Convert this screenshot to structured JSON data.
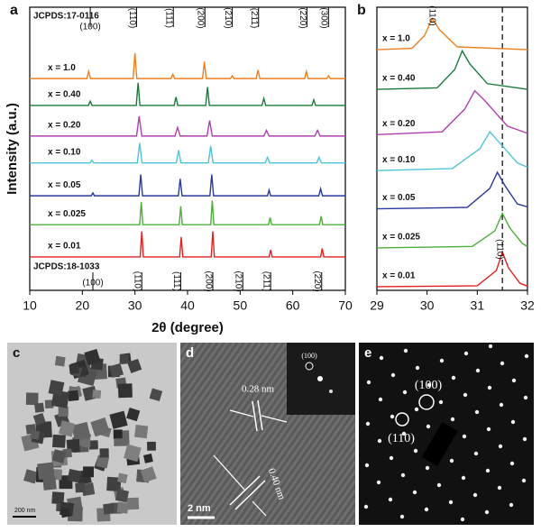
{
  "chart_data": [
    {
      "type": "line",
      "panel": "a",
      "xlabel": "2θ (degree)",
      "ylabel": "Intensity (a.u.)",
      "xlim": [
        10,
        70
      ],
      "xticks": [
        10,
        20,
        30,
        40,
        50,
        60,
        70
      ],
      "ylim": [
        0,
        100
      ],
      "references": [
        {
          "name": "JCPDS:17-0116",
          "positions": [
            21.5,
            30.3,
            37.3,
            43.3,
            48.5,
            53.5,
            62.7,
            66.8
          ],
          "labels": [
            "(100)",
            "(110)",
            "(111)",
            "(200)",
            "(210)",
            "(211)",
            "(220)",
            "(300)"
          ]
        },
        {
          "name": "JCPDS:18-1033",
          "positions": [
            22.0,
            31.3,
            38.7,
            44.8,
            50.5,
            55.8,
            65.5
          ],
          "labels": [
            "(100)",
            "(110)",
            "(111)",
            "(200)",
            "(210)",
            "(211)",
            "(220)"
          ]
        }
      ],
      "series": [
        {
          "name": "x = 1.0",
          "color": "#f07f1e",
          "x": [
            10,
            20.85,
            21.2,
            21.55,
            29.65,
            30.0,
            30.35,
            36.85,
            37.2,
            37.55,
            42.85,
            43.2,
            43.55,
            48.15,
            48.5,
            48.85,
            53.05,
            53.4,
            53.75,
            62.25,
            62.6,
            62.95,
            66.45,
            66.8,
            67.15,
            70
          ],
          "values": [
            74.8,
            74.8,
            77.3,
            74.8,
            74.8,
            83.8,
            74.8,
            74.8,
            76.3,
            74.8,
            74.8,
            80.8,
            74.8,
            74.8,
            75.8,
            74.8,
            74.8,
            77.8,
            74.8,
            74.8,
            77.3,
            74.8,
            74.8,
            75.8,
            74.8,
            74.8
          ]
        },
        {
          "name": "x = 0.40",
          "color": "#1a7a3a",
          "x": [
            10,
            21.15,
            21.5,
            21.85,
            30.25,
            30.6,
            30.95,
            37.45,
            37.8,
            38.15,
            43.45,
            43.8,
            44.15,
            54.15,
            54.5,
            54.85,
            63.65,
            64.0,
            64.35,
            70
          ],
          "values": [
            65.3,
            65.3,
            66.8,
            65.3,
            65.3,
            73.3,
            65.3,
            65.3,
            68.3,
            65.3,
            65.3,
            71.8,
            65.3,
            65.3,
            67.8,
            65.3,
            65.3,
            67.3,
            65.3,
            65.3
          ]
        },
        {
          "name": "x = 0.20",
          "color": "#b040b0",
          "x": [
            10,
            30.3,
            30.8,
            31.3,
            37.6,
            38.1,
            38.6,
            43.7,
            44.2,
            44.7,
            54.5,
            55.0,
            55.5,
            64.2,
            64.7,
            65.2,
            70
          ],
          "values": [
            54.5,
            54.5,
            61.5,
            54.5,
            54.5,
            57.5,
            54.5,
            54.5,
            60,
            54.5,
            54.5,
            56.5,
            54.5,
            54.5,
            56.5,
            54.5,
            54.5
          ]
        },
        {
          "name": "x = 0.10",
          "color": "#4fc3d8",
          "x": [
            10,
            21.45,
            21.8,
            22.15,
            30.45,
            30.9,
            31.35,
            37.85,
            38.3,
            38.75,
            43.95,
            44.4,
            44.85,
            54.75,
            55.2,
            55.65,
            64.55,
            65.0,
            65.45,
            70
          ],
          "values": [
            45,
            45,
            46,
            45,
            45,
            52,
            45,
            45,
            49.5,
            45,
            45,
            51,
            45,
            45,
            47,
            45,
            45,
            47,
            45,
            45
          ]
        },
        {
          "name": "x = 0.05",
          "color": "#2a3a9a",
          "x": [
            10,
            21.7,
            22.0,
            22.3,
            30.75,
            31.1,
            31.45,
            38.25,
            38.6,
            38.95,
            44.25,
            44.6,
            44.95,
            55.2,
            55.5,
            55.8,
            64.95,
            65.3,
            65.65,
            70
          ],
          "values": [
            33.4,
            33.4,
            34.4,
            33.4,
            33.4,
            40.9,
            33.4,
            33.4,
            39.4,
            33.4,
            33.4,
            40.9,
            33.4,
            33.4,
            35.4,
            33.4,
            33.4,
            35.9,
            33.4,
            33.4
          ]
        },
        {
          "name": "x = 0.025",
          "color": "#4caf3a",
          "x": [
            10,
            30.9,
            31.2,
            31.5,
            38.4,
            38.7,
            39.0,
            44.4,
            44.7,
            45.0,
            55.4,
            55.7,
            56.0,
            65.1,
            65.4,
            65.7,
            70
          ],
          "values": [
            23.2,
            23.2,
            31.2,
            23.2,
            23.2,
            29.7,
            23.2,
            23.2,
            31.7,
            23.2,
            23.2,
            25.7,
            23.2,
            23.2,
            26.2,
            23.2,
            23.2
          ]
        },
        {
          "name": "x = 0.01",
          "color": "#e02020",
          "x": [
            10,
            31.0,
            31.3,
            31.6,
            38.5,
            38.8,
            39.1,
            44.5,
            44.8,
            45.1,
            55.5,
            55.8,
            56.1,
            65.3,
            65.6,
            65.9,
            70
          ],
          "values": [
            11.8,
            11.8,
            20.8,
            11.8,
            11.8,
            18.8,
            11.8,
            11.8,
            20.8,
            11.8,
            11.8,
            14.3,
            11.8,
            11.8,
            14.8,
            11.8,
            11.8
          ]
        }
      ]
    },
    {
      "type": "line",
      "panel": "b",
      "xlim": [
        29,
        32
      ],
      "xticks": [
        29,
        30,
        31,
        32
      ],
      "ylim": [
        0,
        100
      ],
      "vline": 31.5,
      "annotations": [
        {
          "text": "(110)",
          "x": 30.1,
          "y": 97
        },
        {
          "text": "(110)",
          "x": 31.45,
          "y": 14.5
        }
      ],
      "series": [
        {
          "name": "x = 1.0",
          "color": "#f07f1e",
          "x": [
            29,
            29.7,
            29.95,
            30.1,
            30.25,
            30.6,
            32
          ],
          "values": [
            85,
            85.5,
            90,
            96,
            92,
            86,
            85
          ]
        },
        {
          "name": "x = 0.40",
          "color": "#1a7a3a",
          "x": [
            29,
            30.2,
            30.55,
            30.7,
            30.85,
            31.2,
            32
          ],
          "values": [
            71,
            71.5,
            78,
            84.6,
            80,
            73,
            71
          ]
        },
        {
          "name": "x = 0.20",
          "color": "#b040b0",
          "x": [
            29,
            30.3,
            30.75,
            30.95,
            31.15,
            31.6,
            32
          ],
          "values": [
            55,
            56,
            64,
            70.5,
            67,
            58,
            55.5
          ]
        },
        {
          "name": "x = 0.10",
          "color": "#4fc3d8",
          "x": [
            29,
            30.5,
            31.05,
            31.25,
            31.45,
            31.8,
            32
          ],
          "values": [
            42.3,
            43,
            50,
            56,
            52,
            45,
            43.5
          ]
        },
        {
          "name": "x = 0.05",
          "color": "#2a3a9a",
          "x": [
            29,
            30.8,
            31.25,
            31.4,
            31.55,
            31.8,
            32
          ],
          "values": [
            28.8,
            29.3,
            36,
            41.7,
            37,
            30.5,
            29.5
          ]
        },
        {
          "name": "x = 0.025",
          "color": "#4caf3a",
          "x": [
            29,
            30.9,
            31.35,
            31.5,
            31.65,
            31.9,
            32
          ],
          "values": [
            15,
            15.5,
            21,
            27.2,
            22,
            16.5,
            15.5
          ]
        },
        {
          "name": "x = 0.01",
          "color": "#e02020",
          "x": [
            29,
            31.0,
            31.38,
            31.5,
            31.62,
            31.85,
            32
          ],
          "values": [
            1.3,
            1.6,
            7,
            13.5,
            8,
            2.5,
            1.5
          ]
        }
      ]
    }
  ],
  "images": [
    {
      "label": "c",
      "scale_bar": "200 nm"
    },
    {
      "label": "d",
      "scale_bar": "2 nm",
      "annotations": [
        "0.28 nm",
        "0.40 nm"
      ],
      "inset_label": "(100)"
    },
    {
      "label": "e",
      "annotations": [
        "(100)",
        "(110)"
      ]
    }
  ]
}
